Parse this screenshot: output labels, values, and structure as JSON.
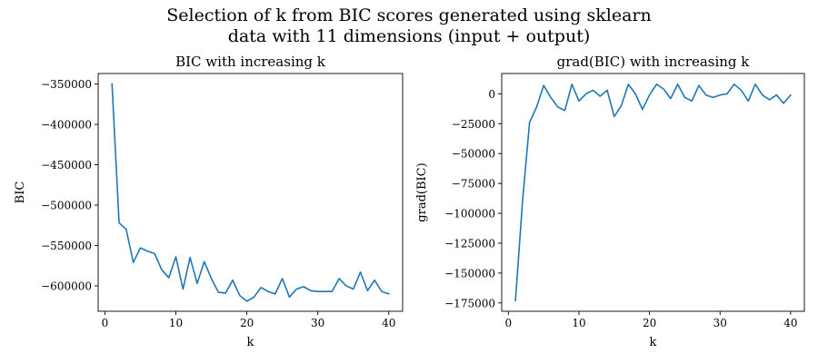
{
  "suptitle": {
    "line1": "Selection of k from BIC scores generated using sklearn",
    "line2": "data with 11 dimensions (input + output)"
  },
  "colors": {
    "line": "#1f77b4",
    "axes": "#000000"
  },
  "chart_data": [
    {
      "type": "line",
      "title": "BIC with increasing k",
      "xlabel": "k",
      "ylabel": "BIC",
      "xlim": [
        -0.95,
        41.95
      ],
      "ylim": [
        -631500,
        -337000
      ],
      "xticks": [
        0,
        10,
        20,
        30,
        40
      ],
      "xtick_labels": [
        "0",
        "10",
        "20",
        "30",
        "40"
      ],
      "yticks": [
        -600000,
        -550000,
        -500000,
        -450000,
        -400000,
        -350000
      ],
      "ytick_labels": [
        "−600000",
        "−550000",
        "−500000",
        "−450000",
        "−400000",
        "−350000"
      ],
      "grid": false,
      "series": [
        {
          "x": [
            1,
            2,
            3,
            4,
            5,
            6,
            7,
            8,
            9,
            10,
            11,
            12,
            13,
            14,
            15,
            16,
            17,
            18,
            19,
            20,
            21,
            22,
            23,
            24,
            25,
            26,
            27,
            28,
            29,
            30,
            31,
            32,
            33,
            34,
            35,
            36,
            37,
            38,
            39,
            40
          ],
          "values": [
            -350000,
            -522000,
            -530000,
            -571000,
            -553000,
            -557000,
            -560000,
            -580000,
            -590000,
            -564000,
            -604000,
            -565000,
            -597000,
            -570000,
            -591000,
            -608000,
            -609000,
            -593000,
            -612000,
            -619000,
            -614000,
            -602000,
            -607000,
            -610000,
            -591000,
            -614000,
            -604000,
            -601000,
            -606000,
            -607000,
            -607000,
            -607000,
            -591000,
            -600000,
            -604000,
            -583000,
            -606000,
            -593000,
            -607000,
            -610000
          ]
        }
      ]
    },
    {
      "type": "line",
      "title": "grad(BIC) with increasing k",
      "xlabel": "k",
      "ylabel": "grad(BIC)",
      "xlim": [
        -0.95,
        41.95
      ],
      "ylim": [
        -182000,
        17000
      ],
      "xticks": [
        0,
        10,
        20,
        30,
        40
      ],
      "xtick_labels": [
        "0",
        "10",
        "20",
        "30",
        "40"
      ],
      "yticks": [
        -175000,
        -150000,
        -125000,
        -100000,
        -75000,
        -50000,
        -25000,
        0
      ],
      "ytick_labels": [
        "−175000",
        "−150000",
        "−125000",
        "−100000",
        "−75000",
        "−50000",
        "−25000",
        "0"
      ],
      "grid": false,
      "series": [
        {
          "x": [
            1,
            2,
            3,
            4,
            5,
            6,
            7,
            8,
            9,
            10,
            11,
            12,
            13,
            14,
            15,
            16,
            17,
            18,
            19,
            20,
            21,
            22,
            23,
            24,
            25,
            26,
            27,
            28,
            29,
            30,
            31,
            32,
            33,
            34,
            35,
            36,
            37,
            38,
            39,
            40
          ],
          "values": [
            -173000,
            -90000,
            -24000,
            -11000,
            7000,
            -3000,
            -11000,
            -14000,
            8000,
            -6000,
            0,
            3000,
            -2000,
            3000,
            -19000,
            -10000,
            8000,
            0,
            -13000,
            -1000,
            8000,
            4000,
            -4000,
            8000,
            -3000,
            -6000,
            7000,
            -1000,
            -3000,
            -1000,
            0,
            8000,
            3000,
            -6000,
            8000,
            -1000,
            -5000,
            -1000,
            -8000,
            -1000
          ]
        }
      ]
    }
  ]
}
